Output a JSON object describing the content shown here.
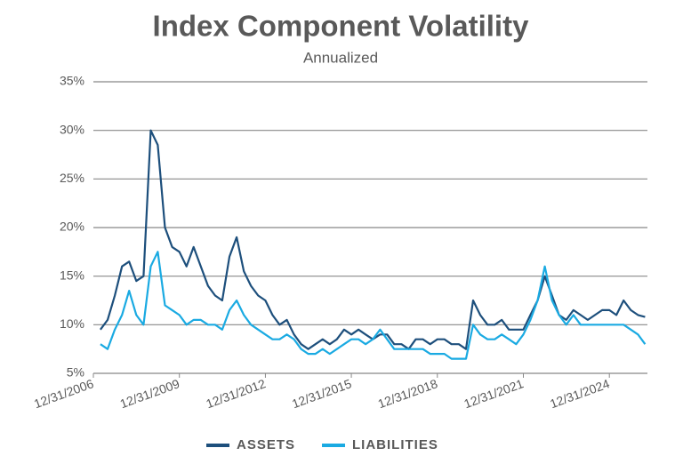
{
  "chart_data": {
    "type": "line",
    "title": "Index Component Volatility",
    "subtitle": "Annualized",
    "x": [
      "2007-03-31",
      "2007-06-30",
      "2007-09-30",
      "2007-12-31",
      "2008-03-31",
      "2008-06-30",
      "2008-09-30",
      "2008-12-31",
      "2009-03-31",
      "2009-06-30",
      "2009-09-30",
      "2009-12-31",
      "2010-03-31",
      "2010-06-30",
      "2010-09-30",
      "2010-12-31",
      "2011-03-31",
      "2011-06-30",
      "2011-09-30",
      "2011-12-31",
      "2012-03-31",
      "2012-06-30",
      "2012-09-30",
      "2012-12-31",
      "2013-03-31",
      "2013-06-30",
      "2013-09-30",
      "2013-12-31",
      "2014-03-31",
      "2014-06-30",
      "2014-09-30",
      "2014-12-31",
      "2015-03-31",
      "2015-06-30",
      "2015-09-30",
      "2015-12-31",
      "2016-03-31",
      "2016-06-30",
      "2016-09-30",
      "2016-12-31",
      "2017-03-31",
      "2017-06-30",
      "2017-09-30",
      "2017-12-31",
      "2018-03-31",
      "2018-06-30",
      "2018-09-30",
      "2018-12-31",
      "2019-03-31",
      "2019-06-30",
      "2019-09-30",
      "2019-12-31",
      "2020-03-31",
      "2020-06-30",
      "2020-09-30",
      "2020-12-31",
      "2021-03-31",
      "2021-06-30",
      "2021-09-30",
      "2021-12-31",
      "2022-03-31",
      "2022-06-30",
      "2022-09-30",
      "2022-12-31",
      "2023-03-31",
      "2023-06-30",
      "2023-09-30",
      "2023-12-31",
      "2024-03-31",
      "2024-06-30",
      "2024-09-30",
      "2024-12-31",
      "2025-03-31",
      "2025-06-30",
      "2025-09-30",
      "2025-12-31",
      "2026-03-31"
    ],
    "series": [
      {
        "name": "ASSETS",
        "color": "#1d4f7c",
        "values": [
          9.5,
          10.5,
          13,
          16,
          16.5,
          14.5,
          15,
          30,
          28.5,
          20,
          18,
          17.5,
          16,
          18,
          16,
          14,
          13,
          12.5,
          17,
          19,
          15.5,
          14,
          13,
          12.5,
          11,
          10,
          10.5,
          9,
          8,
          7.5,
          8,
          8.5,
          8,
          8.5,
          9.5,
          9,
          9.5,
          9,
          8.5,
          9,
          9,
          8,
          8,
          7.5,
          8.5,
          8.5,
          8,
          8.5,
          8.5,
          8,
          8,
          7.5,
          12.5,
          11,
          10,
          10,
          10.5,
          9.5,
          9.5,
          9.5,
          11,
          12.5,
          15,
          13,
          11,
          10.5,
          11.5,
          11,
          10.5,
          11,
          11.5,
          11.5,
          11,
          12.5,
          11.5,
          11,
          10.8
        ]
      },
      {
        "name": "LIABILITIES",
        "color": "#1aaae2",
        "values": [
          8,
          7.5,
          9.5,
          11,
          13.5,
          11,
          10,
          16,
          17.5,
          12,
          11.5,
          11,
          10,
          10.5,
          10.5,
          10,
          10,
          9.5,
          11.5,
          12.5,
          11,
          10,
          9.5,
          9,
          8.5,
          8.5,
          9,
          8.5,
          7.5,
          7,
          7,
          7.5,
          7,
          7.5,
          8,
          8.5,
          8.5,
          8,
          8.5,
          9.5,
          8.5,
          7.5,
          7.5,
          7.5,
          7.5,
          7.5,
          7,
          7,
          7,
          6.5,
          6.5,
          6.5,
          10,
          9,
          8.5,
          8.5,
          9,
          8.5,
          8,
          9,
          10.5,
          12.5,
          16,
          12.5,
          11,
          10,
          11,
          10,
          10,
          10,
          10,
          10,
          10,
          10,
          9.5,
          9,
          8
        ]
      }
    ],
    "xlim": [
      "2006-12-31",
      "2026-04-30"
    ],
    "xticks": [
      {
        "value": "2006-12-31",
        "label": "12/31/2006"
      },
      {
        "value": "2009-12-31",
        "label": "12/31/2009"
      },
      {
        "value": "2012-12-31",
        "label": "12/31/2012"
      },
      {
        "value": "2015-12-31",
        "label": "12/31/2015"
      },
      {
        "value": "2018-12-31",
        "label": "12/31/2018"
      },
      {
        "value": "2021-12-31",
        "label": "12/31/2021"
      },
      {
        "value": "2024-12-31",
        "label": "12/31/2024"
      }
    ],
    "ylim": [
      5,
      35
    ],
    "yticks": [
      {
        "value": 5,
        "label": "5%"
      },
      {
        "value": 10,
        "label": "10%"
      },
      {
        "value": 15,
        "label": "15%"
      },
      {
        "value": 20,
        "label": "20%"
      },
      {
        "value": 25,
        "label": "25%"
      },
      {
        "value": 30,
        "label": "30%"
      },
      {
        "value": 35,
        "label": "35%"
      }
    ],
    "grid": true,
    "legend": "bottom"
  }
}
